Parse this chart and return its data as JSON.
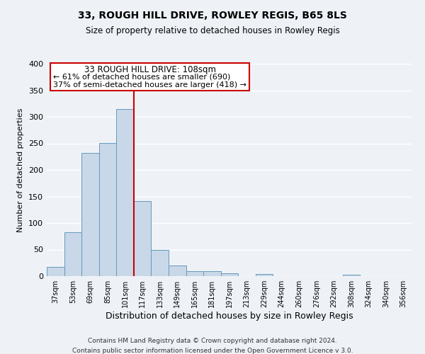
{
  "title": "33, ROUGH HILL DRIVE, ROWLEY REGIS, B65 8LS",
  "subtitle": "Size of property relative to detached houses in Rowley Regis",
  "xlabel": "Distribution of detached houses by size in Rowley Regis",
  "ylabel": "Number of detached properties",
  "bar_labels": [
    "37sqm",
    "53sqm",
    "69sqm",
    "85sqm",
    "101sqm",
    "117sqm",
    "133sqm",
    "149sqm",
    "165sqm",
    "181sqm",
    "197sqm",
    "213sqm",
    "229sqm",
    "244sqm",
    "260sqm",
    "276sqm",
    "292sqm",
    "308sqm",
    "324sqm",
    "340sqm",
    "356sqm"
  ],
  "bar_values": [
    18,
    83,
    232,
    251,
    315,
    142,
    50,
    20,
    9,
    10,
    5,
    0,
    4,
    0,
    0,
    0,
    0,
    3,
    0,
    0,
    0
  ],
  "bar_color": "#c8d8e8",
  "bar_edge_color": "#6699bb",
  "property_label": "33 ROUGH HILL DRIVE: 108sqm",
  "annotation_line1": "← 61% of detached houses are smaller (690)",
  "annotation_line2": "37% of semi-detached houses are larger (418) →",
  "vline_x_index": 4.5,
  "vline_color": "#cc0000",
  "ylim": [
    0,
    400
  ],
  "yticks": [
    0,
    50,
    100,
    150,
    200,
    250,
    300,
    350,
    400
  ],
  "bg_color": "#eef2f7",
  "grid_color": "#ffffff",
  "footnote1": "Contains HM Land Registry data © Crown copyright and database right 2024.",
  "footnote2": "Contains public sector information licensed under the Open Government Licence v 3.0."
}
